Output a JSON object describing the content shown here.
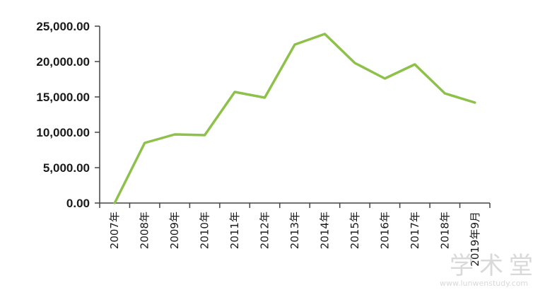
{
  "chart_data": {
    "type": "line",
    "title": "",
    "xlabel": "",
    "ylabel": "",
    "categories": [
      "2007年",
      "2008年",
      "2009年",
      "2010年",
      "2011年",
      "2012年",
      "2013年",
      "2014年",
      "2015年",
      "2016年",
      "2017年",
      "2018年",
      "2019年9月"
    ],
    "series": [
      {
        "values": [
          0,
          8500,
          9700,
          9600,
          15700,
          14900,
          22400,
          23900,
          19800,
          17600,
          19600,
          15500,
          14200
        ]
      }
    ],
    "ylim": [
      0,
      25000
    ],
    "yticks": [
      "0.00",
      "5,000.00",
      "10,000.00",
      "15,000.00",
      "20,000.00",
      "25,000.00"
    ],
    "grid": false,
    "line_color": "#8dc149"
  },
  "watermark": {
    "text": "学术堂",
    "url": "www.lunwenstudy.com"
  }
}
